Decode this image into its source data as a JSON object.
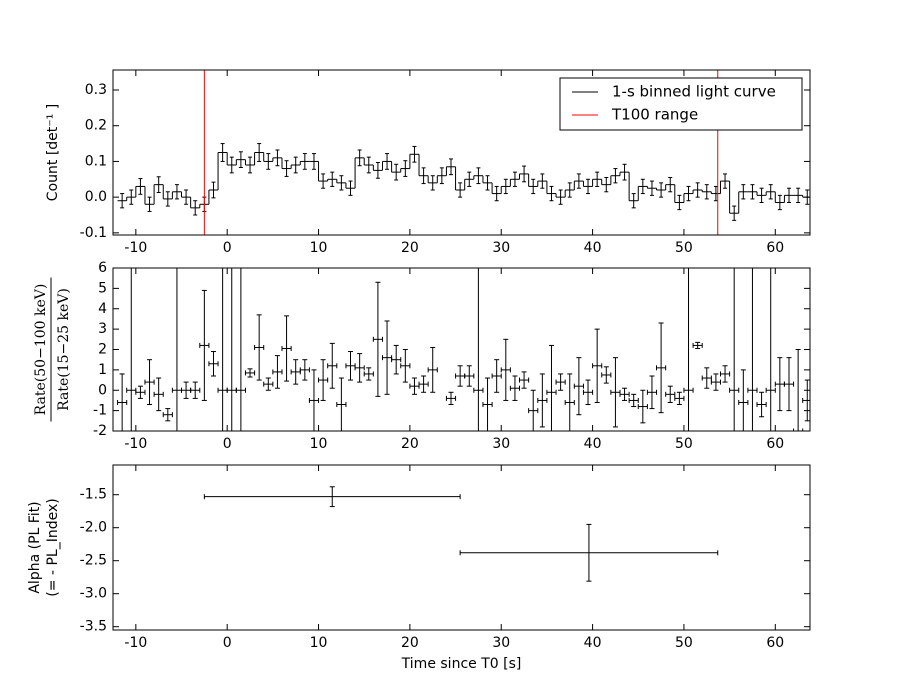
{
  "chart_data": [
    {
      "type": "line",
      "step": true,
      "ylabel": "Count [det⁻¹ ]",
      "xlim": [
        -12.5,
        63.8
      ],
      "ylim": [
        -0.106,
        0.356
      ],
      "xticks": [
        -10,
        0,
        10,
        20,
        30,
        40,
        50,
        60
      ],
      "yticks": [
        -0.1,
        {
          "value": 0,
          "label": "0.0"
        },
        0.1,
        0.2,
        0.3
      ],
      "legend": "upper right",
      "x": [
        -11.5,
        -10.5,
        -9.5,
        -8.5,
        -7.5,
        -6.5,
        -5.5,
        -4.5,
        -3.5,
        -2.5,
        -1.5,
        -0.5,
        0.5,
        1.5,
        2.5,
        3.5,
        4.5,
        5.5,
        6.5,
        7.5,
        8.5,
        9.5,
        10.5,
        11.5,
        12.5,
        13.5,
        14.5,
        15.5,
        16.5,
        17.5,
        18.5,
        19.5,
        20.5,
        21.5,
        22.5,
        23.5,
        24.5,
        25.5,
        26.5,
        27.5,
        28.5,
        29.5,
        30.5,
        31.5,
        32.5,
        33.5,
        34.5,
        35.5,
        36.5,
        37.5,
        38.5,
        39.5,
        40.5,
        41.5,
        42.5,
        43.5,
        44.5,
        45.5,
        46.5,
        47.5,
        48.5,
        49.5,
        50.5,
        51.5,
        52.5,
        53.5,
        54.5,
        55.5,
        56.5,
        57.5,
        58.5,
        59.5,
        60.5,
        61.5,
        62.5,
        63.5
      ],
      "series": [
        {
          "name": "1-s binned light curve",
          "color": "#000000",
          "values": [
            -0.01,
            0.0,
            0.03,
            -0.02,
            0.035,
            -0.005,
            0.015,
            0.0,
            -0.03,
            -0.02,
            0.02,
            0.125,
            0.09,
            0.105,
            0.09,
            0.125,
            0.1,
            0.11,
            0.08,
            0.09,
            0.1,
            0.1,
            0.045,
            0.05,
            0.04,
            0.025,
            0.11,
            0.09,
            0.075,
            0.1,
            0.07,
            0.08,
            0.12,
            0.06,
            0.04,
            0.06,
            0.085,
            0.02,
            0.05,
            0.06,
            0.04,
            0.01,
            0.03,
            0.05,
            0.065,
            0.03,
            0.045,
            0.01,
            0.0,
            0.02,
            0.045,
            0.03,
            0.05,
            0.035,
            0.06,
            0.07,
            -0.01,
            0.03,
            0.025,
            0.02,
            0.035,
            -0.015,
            0.01,
            0.02,
            0.015,
            0.01,
            0.045,
            -0.045,
            0.015,
            0.015,
            0.005,
            0.015,
            -0.015,
            0.005,
            0.005,
            0.0
          ],
          "errors": [
            0.02,
            0.02,
            0.022,
            0.02,
            0.022,
            0.02,
            0.02,
            0.02,
            0.02,
            0.02,
            0.022,
            0.025,
            0.022,
            0.022,
            0.022,
            0.025,
            0.022,
            0.022,
            0.022,
            0.022,
            0.022,
            0.022,
            0.02,
            0.02,
            0.02,
            0.02,
            0.022,
            0.022,
            0.022,
            0.022,
            0.022,
            0.022,
            0.022,
            0.022,
            0.02,
            0.022,
            0.022,
            0.02,
            0.02,
            0.022,
            0.02,
            0.02,
            0.02,
            0.02,
            0.022,
            0.02,
            0.02,
            0.02,
            0.02,
            0.02,
            0.02,
            0.02,
            0.02,
            0.02,
            0.02,
            0.022,
            0.02,
            0.02,
            0.02,
            0.02,
            0.02,
            0.02,
            0.02,
            0.02,
            0.02,
            0.02,
            0.02,
            0.02,
            0.02,
            0.02,
            0.02,
            0.02,
            0.02,
            0.02,
            0.02,
            0.02
          ]
        }
      ],
      "vlines": {
        "name": "T100 range",
        "color": "#ff0000",
        "x": [
          -2.5,
          53.7
        ]
      }
    },
    {
      "type": "errorbar",
      "ylabel": [
        "Rate(50−100 keV)",
        "Rate(15−25 keV)"
      ],
      "xlim": [
        -12.5,
        63.8
      ],
      "ylim": [
        -2,
        6
      ],
      "xticks": [
        -10,
        0,
        10,
        20,
        30,
        40,
        50,
        60
      ],
      "yticks": [
        -2,
        -1,
        0,
        1,
        2,
        3,
        4,
        5,
        6
      ],
      "color": "#000000",
      "xerr": 0.5,
      "x": [
        -11.5,
        -10.5,
        -9.5,
        -8.5,
        -7.5,
        -6.5,
        -5.5,
        -4.5,
        -3.5,
        -2.5,
        -1.5,
        -0.5,
        0.5,
        1.5,
        2.5,
        3.5,
        4.5,
        5.5,
        6.5,
        7.5,
        8.5,
        9.5,
        10.5,
        11.5,
        12.5,
        13.5,
        14.5,
        15.5,
        16.5,
        17.5,
        18.5,
        19.5,
        20.5,
        21.5,
        22.5,
        24.5,
        25.5,
        26.5,
        27.5,
        28.5,
        29.5,
        30.5,
        31.5,
        32.5,
        33.5,
        34.5,
        35.5,
        36.5,
        37.5,
        38.5,
        39.5,
        40.5,
        41.5,
        42.5,
        43.5,
        44.5,
        45.5,
        46.5,
        47.5,
        48.5,
        49.5,
        50.5,
        51.5,
        52.5,
        53.5,
        54.5,
        55.5,
        56.5,
        57.5,
        58.5,
        59.5,
        60.5,
        61.5,
        62.5,
        63.5
      ],
      "values": [
        -0.6,
        0,
        -0.1,
        0.4,
        -0.2,
        -1.2,
        0,
        0.0,
        0.0,
        2.2,
        1.3,
        0,
        0,
        0,
        0.85,
        2.1,
        0.3,
        0.9,
        2.05,
        0.9,
        1.0,
        -0.5,
        0.5,
        1.2,
        -0.7,
        1.2,
        1.1,
        0.8,
        2.5,
        1.6,
        1.5,
        1.2,
        0.2,
        0.3,
        1.0,
        -0.4,
        0.7,
        0.7,
        0,
        -0.7,
        0.7,
        1.0,
        0.1,
        0.5,
        -1.0,
        -0.5,
        -0.1,
        0.4,
        -0.6,
        0.2,
        -0.1,
        1.2,
        0.75,
        -0.1,
        -0.2,
        -0.5,
        -0.8,
        -0.1,
        1.1,
        -0.2,
        -0.4,
        0,
        2.2,
        0.6,
        0.4,
        0.8,
        0,
        -0.6,
        0,
        -0.7,
        0,
        0.3,
        0.3,
        -2.0,
        -0.5
      ],
      "errors": [
        1.4,
        10,
        0.3,
        1.1,
        0.8,
        0.3,
        10,
        0.4,
        0.4,
        2.7,
        0.6,
        10,
        10,
        10,
        0.2,
        1.6,
        0.3,
        0.8,
        1.6,
        0.6,
        0.5,
        1.5,
        1.0,
        1.1,
        1.3,
        0.7,
        0.7,
        0.3,
        2.8,
        1.8,
        0.7,
        0.8,
        0.4,
        0.4,
        1.1,
        0.3,
        0.5,
        0.5,
        10,
        1.3,
        0.8,
        1.5,
        0.6,
        0.4,
        1.0,
        1.3,
        2.3,
        0.4,
        1.4,
        1.4,
        0.6,
        1.8,
        0.4,
        1.7,
        0.3,
        0.3,
        0.8,
        0.8,
        2.2,
        0.4,
        0.3,
        10,
        0.15,
        0.5,
        0.4,
        0.4,
        10,
        1.6,
        10,
        0.6,
        10,
        1.3,
        1.3,
        4,
        1.0
      ]
    },
    {
      "type": "errorbar",
      "ylabel": [
        "Alpha (PL Fit)",
        "(= - PL_Index)"
      ],
      "xlabel": "Time since T0 [s]",
      "xlim": [
        -12.5,
        63.8
      ],
      "ylim": [
        -3.55,
        -1.05
      ],
      "xticks": [
        -10,
        0,
        10,
        20,
        30,
        40,
        50,
        60
      ],
      "yticks": [
        -3.5,
        {
          "value": -3,
          "label": "-3.0"
        },
        -2.5,
        {
          "value": -2,
          "label": "-2.0"
        },
        -1.5
      ],
      "color": "#000000",
      "x": [
        11.5,
        39.6
      ],
      "xerr": [
        14.0,
        14.1
      ],
      "values": [
        -1.53,
        -2.38
      ],
      "errors": [
        0.15,
        0.43
      ]
    }
  ]
}
